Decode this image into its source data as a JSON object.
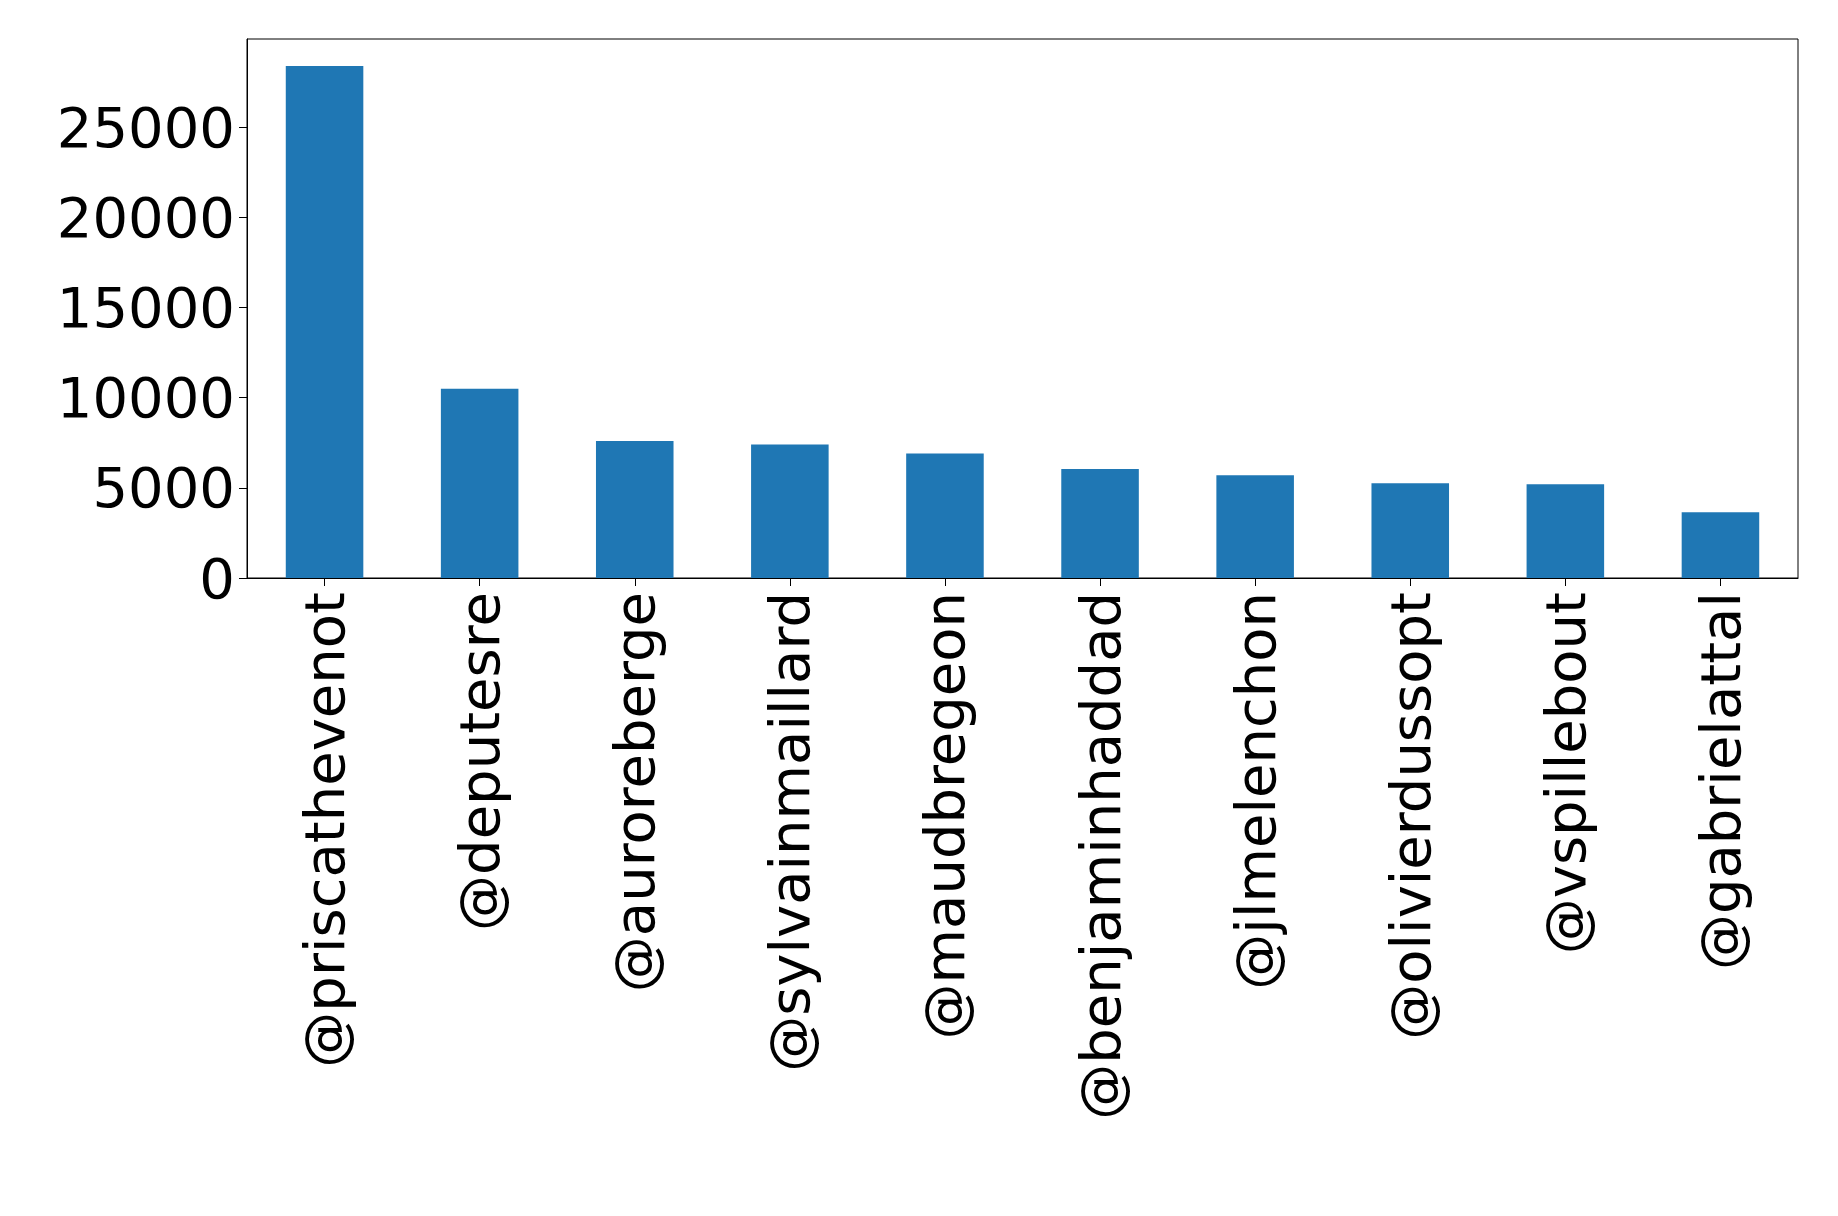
{
  "chart_data": {
    "type": "bar",
    "categories": [
      "@priscathevenot",
      "@deputesre",
      "@auroreberge",
      "@sylvainmaillard",
      "@maudbregeon",
      "@benjaminhaddad",
      "@jlmelenchon",
      "@olivierdussopt",
      "@vspillebout",
      "@gabrielattal"
    ],
    "values": [
      28400,
      10500,
      7600,
      7400,
      6900,
      6050,
      5700,
      5250,
      5200,
      3650
    ],
    "color": "#1f77b4",
    "ylim": [
      0,
      29900
    ],
    "yticks": [
      0,
      5000,
      10000,
      15000,
      20000,
      25000
    ],
    "grid": false
  }
}
